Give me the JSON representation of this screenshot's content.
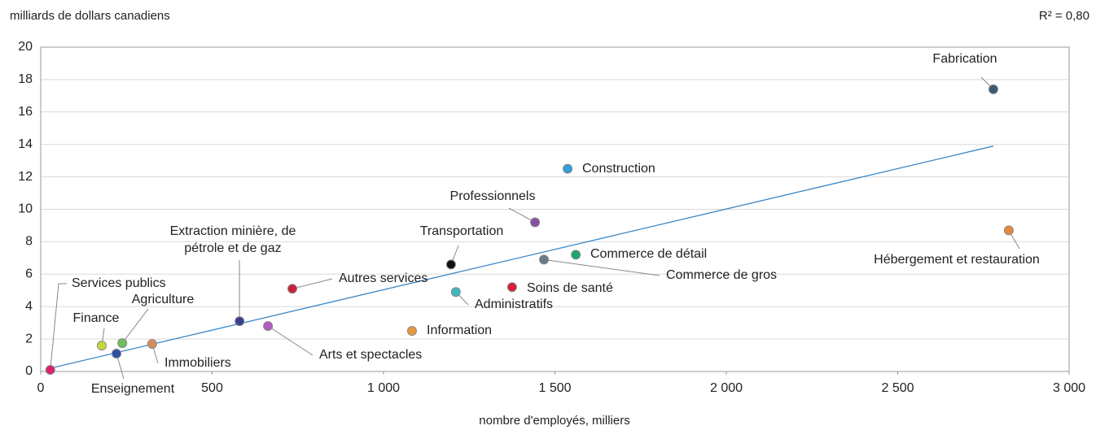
{
  "chart_data": {
    "type": "scatter",
    "y_axis_title": "milliards de dollars canadiens",
    "x_axis_title": "nombre d'employés, milliers",
    "annotation": "R² = 0,80",
    "xlim": [
      0,
      3000
    ],
    "ylim": [
      0,
      20
    ],
    "xticks": [
      0,
      500,
      {
        "value": 1000,
        "label": "1 000"
      },
      {
        "value": 1500,
        "label": "1 500"
      },
      {
        "value": 2000,
        "label": "2 000"
      },
      {
        "value": 2500,
        "label": "2 500"
      },
      {
        "value": 3000,
        "label": "3 000"
      }
    ],
    "yticks": [
      0,
      2,
      4,
      6,
      8,
      10,
      12,
      14,
      16,
      18,
      20
    ],
    "grid": true,
    "trendline": {
      "color": "#3a87c8",
      "x": [
        28,
        2779
      ],
      "y": [
        0.2,
        13.9
      ]
    },
    "points": [
      {
        "name": "Fabrication",
        "x": 2779,
        "y": 17.4,
        "color": "#3d5a73"
      },
      {
        "name": "Construction",
        "x": 1537,
        "y": 12.5,
        "color": "#2fa0d8"
      },
      {
        "name": "Professionnels",
        "x": 1442,
        "y": 9.2,
        "color": "#8a4fa8"
      },
      {
        "name": "Hébergement et restauration",
        "x": 2824,
        "y": 8.7,
        "color": "#e8873a"
      },
      {
        "name": "Commerce de détail",
        "x": 1561,
        "y": 7.2,
        "color": "#1aa86b"
      },
      {
        "name": "Transportation",
        "x": 1197,
        "y": 6.6,
        "color": "#111111"
      },
      {
        "name": "Commerce de gros",
        "x": 1468,
        "y": 6.9,
        "color": "#6b7b85"
      },
      {
        "name": "Autres services",
        "x": 734,
        "y": 5.1,
        "color": "#c8223a"
      },
      {
        "name": "Soins de santé",
        "x": 1375,
        "y": 5.2,
        "color": "#d81e3c"
      },
      {
        "name": "Administratifs",
        "x": 1211,
        "y": 4.9,
        "color": "#3fb8c0"
      },
      {
        "name": "Extraction minière, de pétrole et de gaz",
        "x": 580,
        "y": 3.1,
        "color": "#3a3f8f"
      },
      {
        "name": "Arts et spectacles",
        "x": 663,
        "y": 2.8,
        "color": "#b45cc0"
      },
      {
        "name": "Information",
        "x": 1083,
        "y": 2.5,
        "color": "#e8983a"
      },
      {
        "name": "Agriculture",
        "x": 238,
        "y": 1.75,
        "color": "#6cbf5a"
      },
      {
        "name": "Immobiliers",
        "x": 325,
        "y": 1.7,
        "color": "#d98a5a"
      },
      {
        "name": "Finance",
        "x": 178,
        "y": 1.6,
        "color": "#c8d83a"
      },
      {
        "name": "Enseignement",
        "x": 221,
        "y": 1.1,
        "color": "#2d4fa8"
      },
      {
        "name": "Services publics",
        "x": 28,
        "y": 0.1,
        "color": "#e0206e"
      }
    ]
  }
}
